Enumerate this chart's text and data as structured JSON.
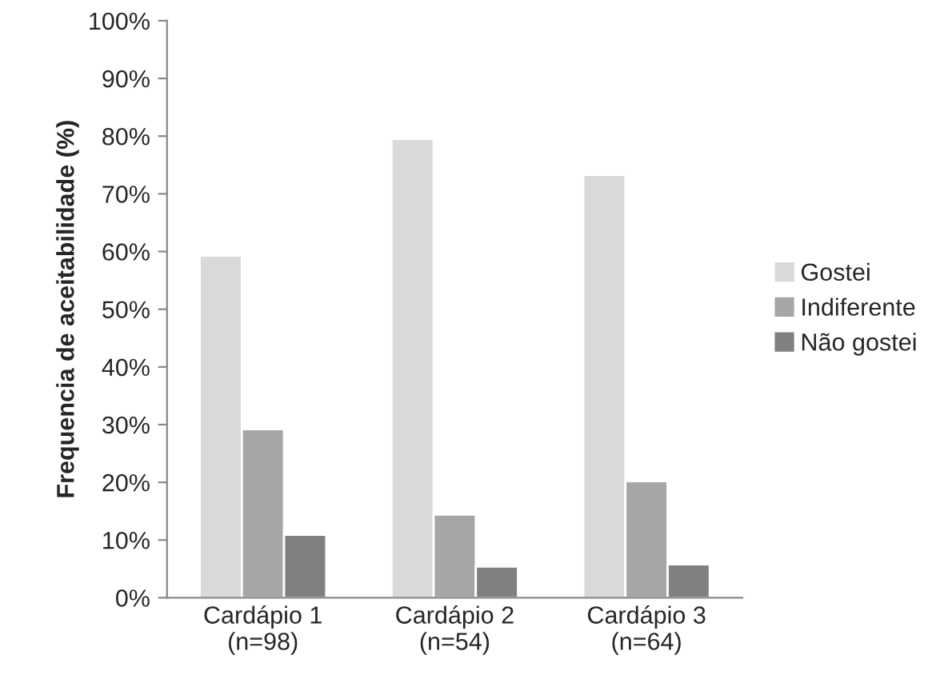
{
  "chart_data": {
    "type": "bar",
    "ylabel": "Frequencia de aceitabilidade (%)",
    "categories": [
      "Cardápio 1\n(n=98)",
      "Cardápio 2\n(n=54)",
      "Cardápio 3\n(n=64)"
    ],
    "series": [
      {
        "name": "Gostei",
        "color": "#d9d9d9",
        "values": [
          59.3,
          79.5,
          73.3
        ]
      },
      {
        "name": "Indiferente",
        "color": "#a6a6a6",
        "values": [
          29.2,
          14.4,
          20.2
        ]
      },
      {
        "name": "Não gostei",
        "color": "#808080",
        "values": [
          10.9,
          5.4,
          5.8
        ]
      }
    ],
    "ylim": [
      0,
      100
    ],
    "yticks": [
      {
        "value": 0,
        "label": "0%"
      },
      {
        "value": 10,
        "label": "10%"
      },
      {
        "value": 20,
        "label": "20%"
      },
      {
        "value": 30,
        "label": "30%"
      },
      {
        "value": 40,
        "label": "40%"
      },
      {
        "value": 50,
        "label": "50%"
      },
      {
        "value": 60,
        "label": "60%"
      },
      {
        "value": 70,
        "label": "70%"
      },
      {
        "value": 80,
        "label": "80%"
      },
      {
        "value": 90,
        "label": "90%"
      },
      {
        "value": 100,
        "label": "100%"
      }
    ],
    "grid": false,
    "legend": "right"
  }
}
